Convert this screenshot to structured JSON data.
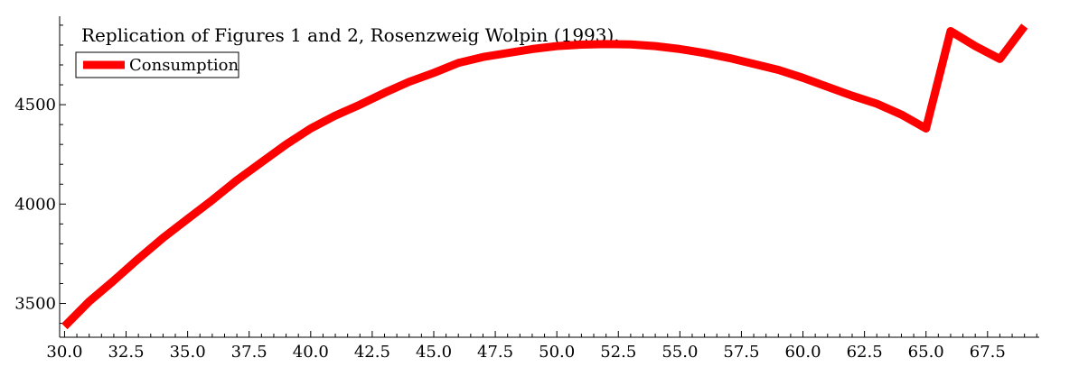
{
  "chart_data": {
    "type": "line",
    "title": "Replication of Figures 1 and 2, Rosenzweig Wolpin (1993).",
    "xlabel": "",
    "ylabel": "",
    "xlim": [
      29.8,
      69.6
    ],
    "ylim": [
      3330,
      4945
    ],
    "x_ticks": [
      "30.0",
      "32.5",
      "35.0",
      "37.5",
      "40.0",
      "42.5",
      "45.0",
      "47.5",
      "50.0",
      "52.5",
      "55.0",
      "57.5",
      "60.0",
      "62.5",
      "65.0",
      "67.5"
    ],
    "y_ticks": [
      "3500",
      "4000",
      "4500"
    ],
    "grid": false,
    "legend": "top-left",
    "series": [
      {
        "name": "Consumption",
        "color": "#ff0000",
        "x": [
          30,
          31,
          32,
          33,
          34,
          35,
          36,
          37,
          38,
          39,
          40,
          41,
          42,
          43,
          44,
          45,
          46,
          47,
          48,
          49,
          50,
          51,
          52,
          53,
          54,
          55,
          56,
          57,
          58,
          59,
          60,
          61,
          62,
          63,
          64,
          65,
          66,
          67,
          68,
          69
        ],
        "values": [
          3385,
          3510,
          3615,
          3725,
          3830,
          3925,
          4020,
          4120,
          4210,
          4300,
          4380,
          4445,
          4500,
          4560,
          4615,
          4660,
          4710,
          4740,
          4760,
          4780,
          4795,
          4802,
          4805,
          4803,
          4795,
          4780,
          4760,
          4735,
          4705,
          4675,
          4635,
          4590,
          4545,
          4505,
          4450,
          4380,
          4870,
          4795,
          4730,
          4895
        ]
      }
    ]
  }
}
